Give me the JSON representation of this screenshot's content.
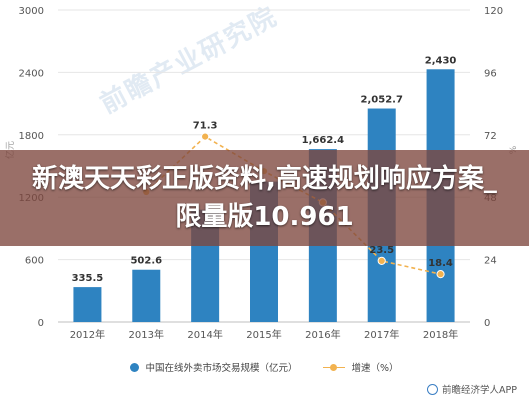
{
  "banner": {
    "title": "新澳天天彩正版资料,高速规划响应方案_限量版10.961"
  },
  "watermark": "前瞻产业研究院",
  "source": "前瞻经济学人APP",
  "legend": {
    "bar_label": "中国在线外卖市场交易规模（亿元）",
    "line_label": "增速（%）"
  },
  "colors": {
    "bar": "#2e83c1",
    "line": "#f2b24f",
    "grid": "#e6e6e6",
    "axis_text": "#555555"
  },
  "chart_data": {
    "type": "bar",
    "categories": [
      "2012年",
      "2013年",
      "2014年",
      "2015年",
      "2016年",
      "2017年",
      "2018年"
    ],
    "series": [
      {
        "name": "中国在线外卖市场交易规模（亿元）",
        "type": "bar",
        "axis": "left",
        "values": [
          335.5,
          502.6,
          1080,
          1350,
          1662.4,
          2052.7,
          2430
        ],
        "labels": [
          "335.5",
          "502.6",
          "",
          "",
          "1,662.4",
          "2,052.7",
          "2,430"
        ]
      },
      {
        "name": "增速（%）",
        "type": "line",
        "axis": "right",
        "values": [
          null,
          50,
          71.3,
          58,
          46,
          23.5,
          18.4
        ],
        "labels": [
          "",
          "",
          "71.3",
          "",
          "",
          "23.5",
          "18.4"
        ]
      }
    ],
    "y_left": {
      "min": 0,
      "max": 3000,
      "ticks": [
        "0",
        "600",
        "1200",
        "1800",
        "2400",
        "3000"
      ]
    },
    "y_right": {
      "min": 0,
      "max": 120,
      "ticks": [
        "0",
        "24",
        "48",
        "72",
        "96",
        "120"
      ]
    },
    "ylabel_left": "亿元",
    "ylabel_right": "%",
    "grid": true,
    "legend_position": "bottom"
  }
}
